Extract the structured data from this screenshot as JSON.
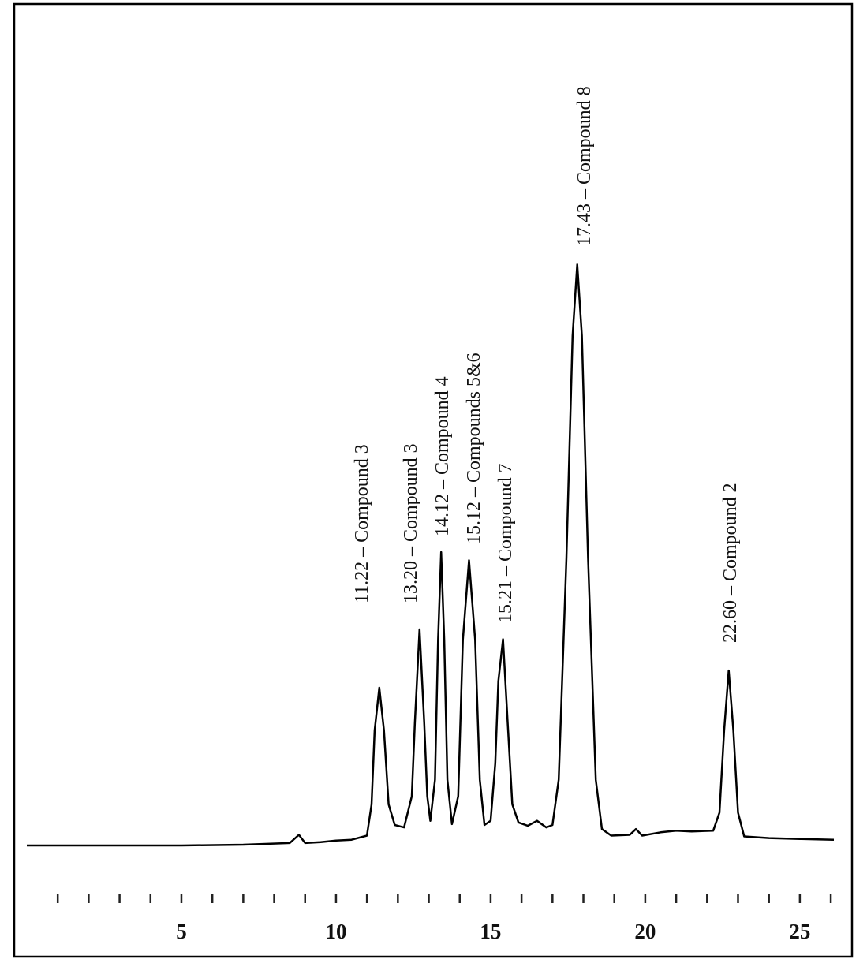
{
  "chart_data": {
    "type": "line",
    "color": "#000000",
    "xlim": [
      0,
      26.1
    ],
    "ylim": [
      0,
      100
    ],
    "xticks": [
      5,
      10,
      15,
      20,
      25
    ],
    "xticks_minor": [
      1,
      2,
      3,
      4,
      5,
      6,
      7,
      8,
      9,
      10,
      11,
      12,
      13,
      14,
      15,
      16,
      17,
      18,
      19,
      20,
      21,
      22,
      23,
      24,
      25,
      26
    ],
    "x": [
      0,
      5,
      7,
      8.5,
      8.8,
      9.0,
      9.5,
      10,
      10.5,
      11.0,
      11.15,
      11.25,
      11.4,
      11.55,
      11.7,
      11.9,
      12.2,
      12.45,
      12.55,
      12.7,
      12.85,
      12.95,
      13.05,
      13.2,
      13.3,
      13.4,
      13.5,
      13.6,
      13.75,
      13.95,
      14.1,
      14.3,
      14.5,
      14.65,
      14.8,
      15.0,
      15.15,
      15.25,
      15.4,
      15.55,
      15.7,
      15.9,
      16.2,
      16.5,
      16.8,
      17.0,
      17.2,
      17.45,
      17.65,
      17.8,
      17.95,
      18.15,
      18.4,
      18.6,
      18.9,
      19.5,
      19.7,
      19.9,
      20.5,
      21.0,
      21.5,
      22.2,
      22.4,
      22.55,
      22.7,
      22.85,
      23.0,
      23.2,
      24,
      25,
      26.1
    ],
    "values": [
      0,
      0,
      0.1,
      0.3,
      1.3,
      0.3,
      0.4,
      0.6,
      0.7,
      1.2,
      5,
      14,
      19.2,
      14,
      5,
      2.5,
      2.2,
      6,
      15,
      26.3,
      15,
      6,
      3.0,
      8,
      25,
      35.7,
      25,
      8,
      2.6,
      6,
      25,
      34.7,
      25,
      8,
      2.5,
      3,
      10,
      20,
      25.1,
      15,
      5,
      2.8,
      2.4,
      3.0,
      2.2,
      2.5,
      8,
      35,
      62,
      70.7,
      62,
      35,
      8,
      2,
      1.2,
      1.3,
      2,
      1.2,
      1.6,
      1.8,
      1.7,
      1.8,
      4,
      14,
      21.3,
      14,
      4,
      1.1,
      0.9,
      0.8,
      0.7
    ],
    "annotations": [
      "11.22 – Compound 3",
      "13.20 – Compound 3",
      "14.12 – Compound 4",
      "15.12 – Compounds 5&6",
      "15.21 – Compound 7",
      "17.43 – Compound 8",
      "22.60 – Compound 2"
    ]
  }
}
